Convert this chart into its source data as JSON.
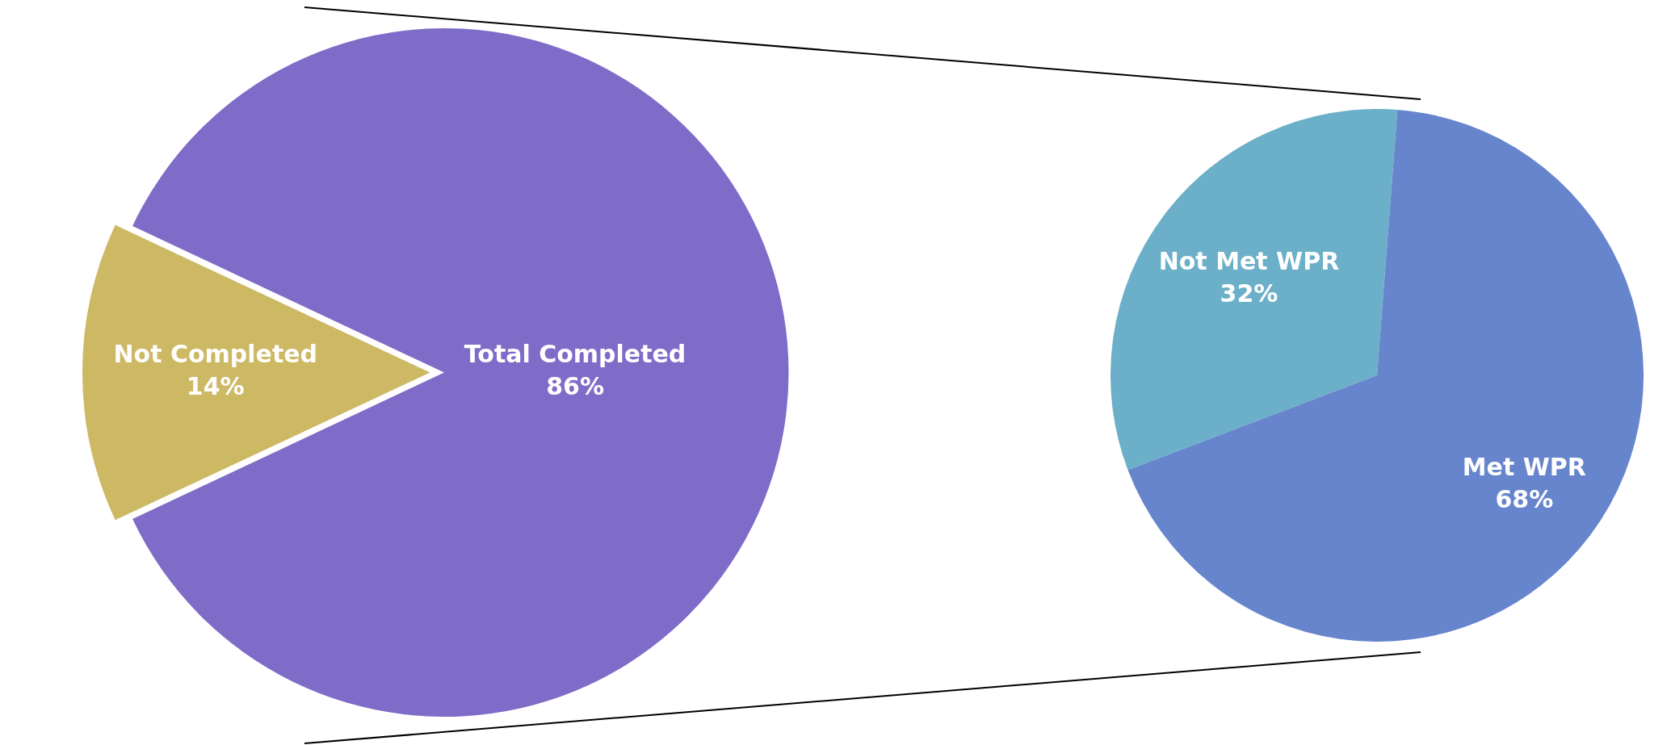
{
  "chart_data": [
    {
      "type": "pie",
      "categories": [
        "Total Completed",
        "Not Completed"
      ],
      "values": [
        86,
        14
      ],
      "colors": [
        "#7f6cc8",
        "#cdb864"
      ],
      "value_labels": [
        "86%",
        "14%"
      ]
    },
    {
      "type": "pie",
      "categories": [
        "Not Met WPR",
        "Met WPR"
      ],
      "values": [
        32,
        68
      ],
      "colors": [
        "#6cafc8",
        "#6685cc"
      ],
      "value_labels": [
        "32%",
        "68%"
      ]
    }
  ]
}
